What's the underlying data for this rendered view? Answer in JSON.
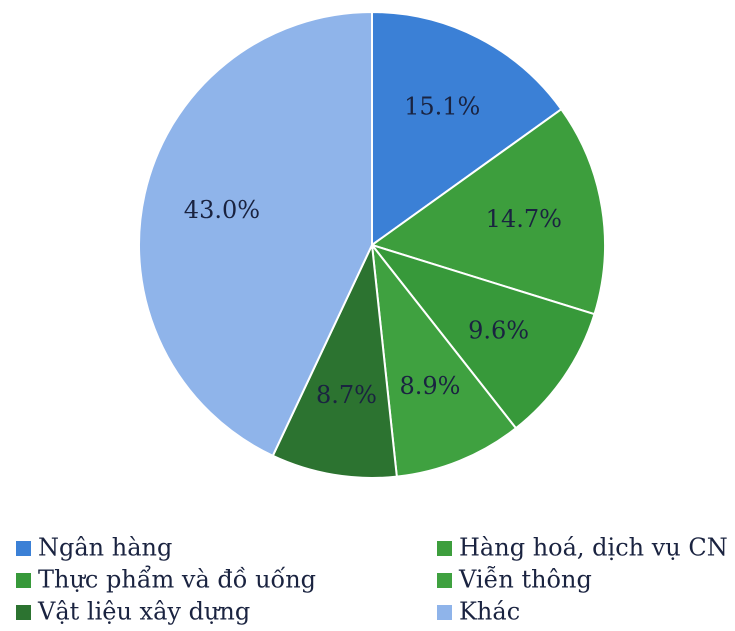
{
  "chart_data": {
    "type": "pie",
    "categories": [
      "Ngân hàng",
      "Hàng hoá, dịch vụ CN",
      "Thực phẩm và đồ uống",
      "Viễn thông",
      "Vật liệu xây dựng",
      "Khác"
    ],
    "values": [
      15.1,
      14.7,
      9.6,
      8.9,
      8.7,
      43.0
    ],
    "value_labels": [
      "15.1%",
      "14.7%",
      "9.6%",
      "8.9%",
      "8.7%",
      "43.0%"
    ],
    "colors": [
      "#3b80d6",
      "#3d9e3d",
      "#37993a",
      "#3fa140",
      "#2c7330",
      "#8fb4ea"
    ],
    "legend": "bottom"
  }
}
